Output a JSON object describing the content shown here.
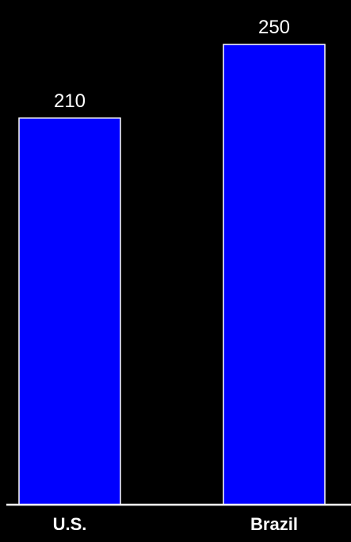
{
  "chart_data": {
    "type": "bar",
    "categories": [
      "U.S.",
      "Brazil"
    ],
    "values": [
      210,
      250
    ],
    "value_labels": [
      "210",
      "250"
    ],
    "title": "",
    "xlabel": "",
    "ylabel": "",
    "ylim": [
      0,
      250
    ],
    "grid": false,
    "legend": "none",
    "colors": {
      "background": "#000000",
      "bar_fill": "#0000FF",
      "bar_stroke": "#FFFFFF",
      "text": "#FFFFFF",
      "axis": "#FFFFFF"
    }
  }
}
